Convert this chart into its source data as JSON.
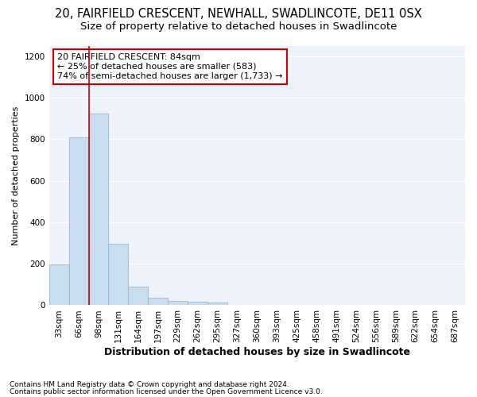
{
  "title1": "20, FAIRFIELD CRESCENT, NEWHALL, SWADLINCOTE, DE11 0SX",
  "title2": "Size of property relative to detached houses in Swadlincote",
  "xlabel": "Distribution of detached houses by size in Swadlincote",
  "ylabel": "Number of detached properties",
  "footnote1": "Contains HM Land Registry data © Crown copyright and database right 2024.",
  "footnote2": "Contains public sector information licensed under the Open Government Licence v3.0.",
  "bins": [
    "33sqm",
    "66sqm",
    "98sqm",
    "131sqm",
    "164sqm",
    "197sqm",
    "229sqm",
    "262sqm",
    "295sqm",
    "327sqm",
    "360sqm",
    "393sqm",
    "425sqm",
    "458sqm",
    "491sqm",
    "524sqm",
    "556sqm",
    "589sqm",
    "622sqm",
    "654sqm",
    "687sqm"
  ],
  "values": [
    195,
    810,
    925,
    295,
    90,
    37,
    22,
    17,
    12,
    0,
    0,
    0,
    0,
    0,
    0,
    0,
    0,
    0,
    0,
    0,
    0
  ],
  "bar_color": "#c9ddf0",
  "bar_edge_color": "#93b8d8",
  "red_line_x": 1.5,
  "annotation_text": "20 FAIRFIELD CRESCENT: 84sqm\n← 25% of detached houses are smaller (583)\n74% of semi-detached houses are larger (1,733) →",
  "annotation_box_facecolor": "#ffffff",
  "annotation_box_edgecolor": "#cc0000",
  "ylim": [
    0,
    1250
  ],
  "yticks": [
    0,
    200,
    400,
    600,
    800,
    1000,
    1200
  ],
  "bg_color": "#eef2fa",
  "grid_color": "#ffffff",
  "title1_fontsize": 10.5,
  "title2_fontsize": 9.5,
  "xlabel_fontsize": 9,
  "ylabel_fontsize": 8,
  "tick_fontsize": 7.5,
  "annot_fontsize": 8,
  "footnote_fontsize": 6.5
}
